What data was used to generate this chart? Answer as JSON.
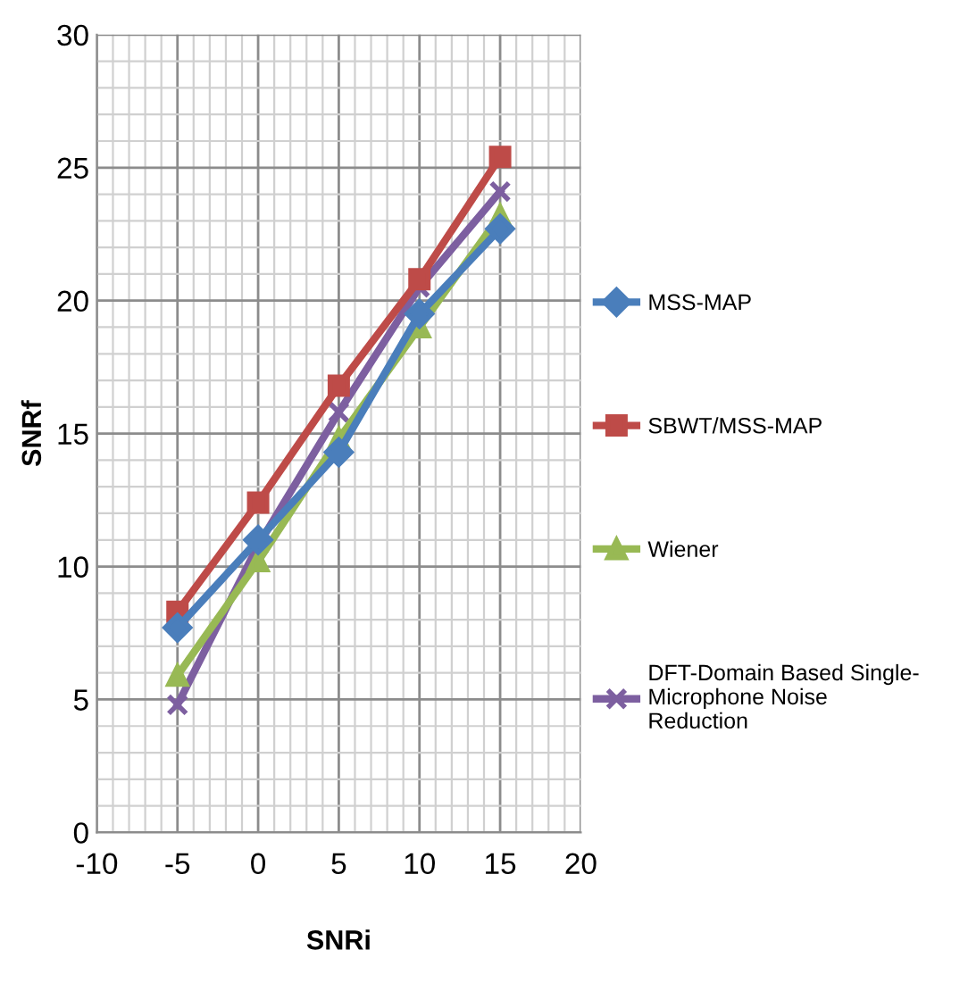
{
  "chart_data": {
    "type": "line",
    "xlabel": "SNRi",
    "ylabel": "SNRf",
    "x": [
      -5,
      0,
      5,
      10,
      15
    ],
    "series": [
      {
        "name": "MSS-MAP",
        "color": "#4a7ebb",
        "marker": "diamond",
        "values": [
          7.7,
          11,
          14.3,
          19.5,
          22.7
        ]
      },
      {
        "name": "SBWT/MSS-MAP",
        "color": "#be4b48",
        "marker": "square",
        "values": [
          8.3,
          12.4,
          16.8,
          20.8,
          25.4
        ]
      },
      {
        "name": "Wiener",
        "color": "#98b954",
        "marker": "triangle",
        "values": [
          5.9,
          10.2,
          14.8,
          19.0,
          23.2
        ]
      },
      {
        "name": "DFT-Domain Based Single-\nMicrophone Noise\nReduction",
        "color": "#7d5fa0",
        "marker": "cross",
        "values": [
          4.8,
          10.8,
          15.8,
          20.5,
          24.1
        ]
      }
    ],
    "xlim": [
      -10,
      20
    ],
    "xticks": [
      -10,
      -5,
      0,
      5,
      10,
      15,
      20
    ],
    "ylim": [
      0,
      30
    ],
    "yticks": [
      0,
      5,
      10,
      15,
      20,
      25,
      30
    ],
    "grid": true,
    "legend": "right",
    "line_style": "solid"
  }
}
